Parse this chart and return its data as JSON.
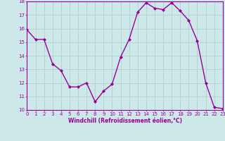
{
  "x": [
    0,
    1,
    2,
    3,
    4,
    5,
    6,
    7,
    8,
    9,
    10,
    11,
    12,
    13,
    14,
    15,
    16,
    17,
    18,
    19,
    20,
    21,
    22,
    23
  ],
  "y": [
    15.9,
    15.2,
    15.2,
    13.4,
    12.9,
    11.7,
    11.7,
    12.0,
    10.6,
    11.4,
    11.9,
    13.9,
    15.2,
    17.2,
    17.9,
    17.5,
    17.4,
    17.9,
    17.3,
    16.6,
    15.1,
    12.0,
    10.2,
    10.1
  ],
  "line_color": "#990099",
  "marker": "D",
  "marker_size": 2.0,
  "bg_color": "#cce8e8",
  "grid_color": "#aacccc",
  "xlabel": "Windchill (Refroidissement éolien,°C)",
  "xlabel_color": "#990099",
  "tick_color": "#990099",
  "ylim": [
    10,
    18
  ],
  "yticks": [
    10,
    11,
    12,
    13,
    14,
    15,
    16,
    17,
    18
  ],
  "xticks": [
    0,
    1,
    2,
    3,
    4,
    5,
    6,
    7,
    8,
    9,
    10,
    11,
    12,
    13,
    14,
    15,
    16,
    17,
    18,
    19,
    20,
    21,
    22,
    23
  ],
  "line_width": 1.0,
  "border_color": "#990099",
  "tick_fontsize": 5.0,
  "xlabel_fontsize": 5.5
}
